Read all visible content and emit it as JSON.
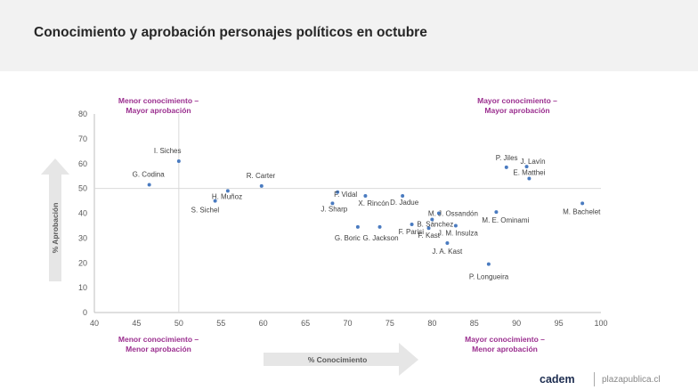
{
  "title": "Conocimiento y aprobación personajes políticos en octubre",
  "quadrants": {
    "top_left": "Menor conocimiento –\nMayor aprobación",
    "top_right": "Mayor conocimiento –\nMayor aprobación",
    "bottom_left": "Menor conocimiento –\nMenor aprobación",
    "bottom_right": "Mayor conocimiento –\nMenor aprobación"
  },
  "colors": {
    "accent": "#9b2f8f",
    "points": "#4a7bc0",
    "arrow": "#e6e6e6",
    "brand": "#1d2d50"
  },
  "footer": {
    "brand": "cadem",
    "site": "plazapublica.cl"
  },
  "chart_data": {
    "type": "scatter",
    "title": "Conocimiento y aprobación personajes políticos en octubre",
    "xlabel": "% Conocimiento",
    "ylabel": "% Aprobación",
    "xlim": [
      40,
      100
    ],
    "ylim": [
      0,
      80
    ],
    "xticks": [
      40,
      45,
      50,
      55,
      60,
      65,
      70,
      75,
      80,
      85,
      90,
      95,
      100
    ],
    "yticks": [
      0,
      10,
      20,
      30,
      40,
      50,
      60,
      70,
      80
    ],
    "reference_lines": {
      "x": 50,
      "y": 50
    },
    "points": [
      {
        "label": "I. Siches",
        "x": 50,
        "y": 61
      },
      {
        "label": "G. Codina",
        "x": 46.5,
        "y": 51.5
      },
      {
        "label": "R. Carter",
        "x": 59.8,
        "y": 51
      },
      {
        "label": "H. Muñoz",
        "x": 55.8,
        "y": 49
      },
      {
        "label": "S. Sichel",
        "x": 54.3,
        "y": 45
      },
      {
        "label": "F. Vidal",
        "x": 68.8,
        "y": 48.5
      },
      {
        "label": "J. Sharp",
        "x": 68.2,
        "y": 44
      },
      {
        "label": "X. Rincón",
        "x": 72.1,
        "y": 47
      },
      {
        "label": "D. Jadue",
        "x": 76.5,
        "y": 47
      },
      {
        "label": "G. Boric",
        "x": 71.2,
        "y": 34.5
      },
      {
        "label": "G. Jackson",
        "x": 73.8,
        "y": 34.5
      },
      {
        "label": "F. Parisi",
        "x": 77.6,
        "y": 35.5
      },
      {
        "label": "M. J. Ossandón",
        "x": 80.8,
        "y": 40
      },
      {
        "label": "B. Sánchez",
        "x": 80,
        "y": 37.5
      },
      {
        "label": "F. Kast",
        "x": 79.6,
        "y": 34
      },
      {
        "label": "J. M. Insulza",
        "x": 82.8,
        "y": 35
      },
      {
        "label": "J. A. Kast",
        "x": 81.8,
        "y": 28
      },
      {
        "label": "P. Longueira",
        "x": 86.7,
        "y": 19.5
      },
      {
        "label": "P. Jiles",
        "x": 88.8,
        "y": 58.5
      },
      {
        "label": "J. Lavín",
        "x": 91.2,
        "y": 58.8
      },
      {
        "label": "E. Matthei",
        "x": 91.5,
        "y": 54
      },
      {
        "label": "M. E. Ominami",
        "x": 87.6,
        "y": 40.5
      },
      {
        "label": "M. Bachelet",
        "x": 97.8,
        "y": 44
      }
    ]
  }
}
